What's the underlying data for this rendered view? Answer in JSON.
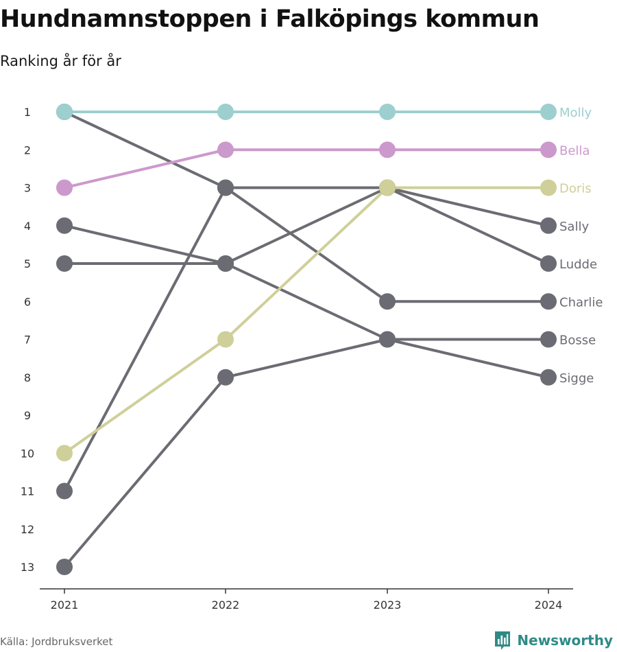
{
  "title": "Hundnamnstoppen i Falköpings kommun",
  "subtitle": "Ranking år för år",
  "source": "Källa: Jordbruksverket",
  "brand": "Newsworthy",
  "colors": {
    "Molly": "#9dcfcf",
    "Bella": "#cc99cc",
    "Doris": "#cfcf99",
    "default": "#6b6b73",
    "brand": "#2f8a86"
  },
  "chart_data": {
    "type": "line",
    "x": [
      "2021",
      "2022",
      "2023",
      "2024"
    ],
    "y_ticks": [
      "1",
      "2",
      "3",
      "4",
      "5",
      "6",
      "7",
      "8",
      "9",
      "10",
      "11",
      "12",
      "13"
    ],
    "ylim": [
      1,
      13
    ],
    "y_inverted": true,
    "grid": false,
    "legend": "none",
    "series": [
      {
        "name": "Charlie",
        "values": [
          1,
          3,
          6,
          6
        ]
      },
      {
        "name": "Sally",
        "values": [
          11,
          3,
          3,
          4
        ]
      },
      {
        "name": "Bosse",
        "values": [
          4,
          5,
          7,
          7
        ]
      },
      {
        "name": "Ludde",
        "values": [
          5,
          5,
          3,
          5
        ]
      },
      {
        "name": "Sigge",
        "values": [
          13,
          8,
          7,
          8
        ]
      },
      {
        "name": "Doris",
        "values": [
          10,
          7,
          3,
          3
        ]
      },
      {
        "name": "Bella",
        "values": [
          3,
          2,
          2,
          2
        ]
      },
      {
        "name": "Molly",
        "values": [
          1,
          1,
          1,
          1
        ]
      }
    ]
  }
}
